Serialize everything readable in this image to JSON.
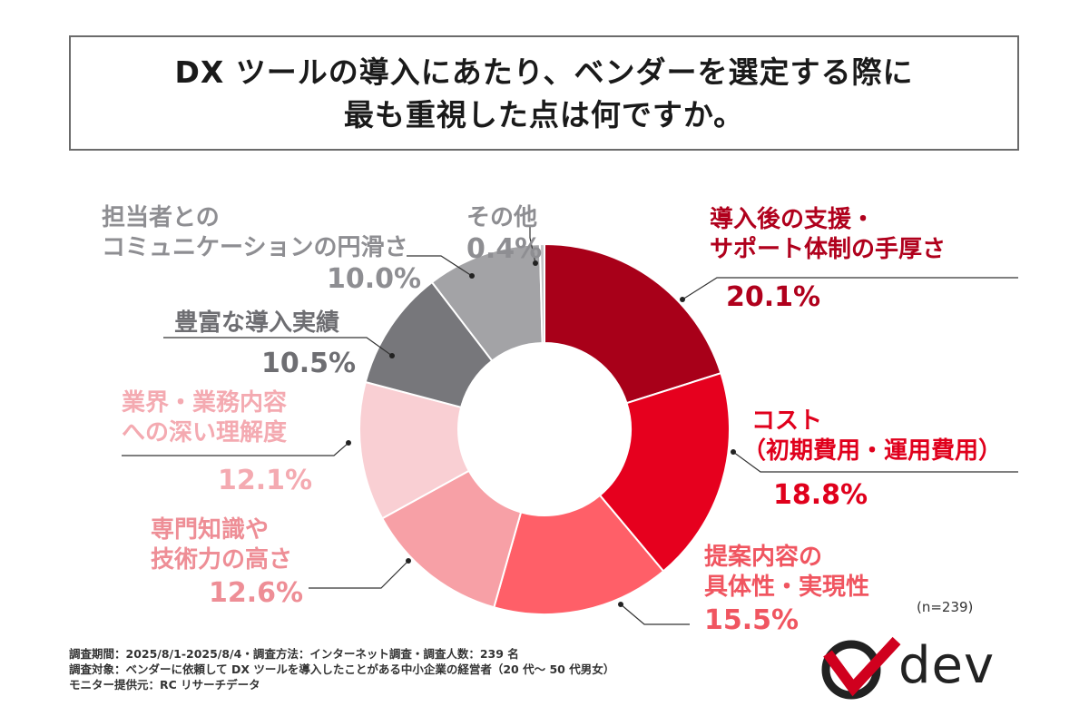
{
  "header": {
    "title_line1": "DX ツールの導入にあたり、ベンダーを選定する際に",
    "title_line2": "最も重視した点は何ですか。"
  },
  "chart_data": {
    "type": "pie",
    "donut": true,
    "title": "DX ツールの導入にあたり、ベンダーを選定する際に最も重視した点は何ですか。",
    "categories": [
      "導入後の支援・サポート体制の手厚さ",
      "コスト（初期費用・運用費用）",
      "提案内容の具体性・実現性",
      "専門知識や技術力の高さ",
      "業界・業務内容への深い理解度",
      "豊富な導入実績",
      "担当者とのコミュニケーションの円滑さ",
      "その他"
    ],
    "values": [
      20.1,
      18.8,
      15.5,
      12.6,
      12.1,
      10.5,
      10.0,
      0.4
    ],
    "colors": [
      "#a80019",
      "#e6001e",
      "#ff5f68",
      "#f7a0a6",
      "#f9cfd3",
      "#77777b",
      "#a3a3a6",
      "#c3c3c6"
    ],
    "labels": [
      {
        "lines": [
          "導入後の支援・",
          "サポート体制の手厚さ"
        ],
        "pct": "20.1%",
        "color": "#b0001c"
      },
      {
        "lines": [
          "コスト",
          "（初期費用・運用費用）"
        ],
        "pct": "18.8%",
        "color": "#e0001c"
      },
      {
        "lines": [
          "提案内容の",
          "具体性・実現性"
        ],
        "pct": "15.5%",
        "color": "#f05560"
      },
      {
        "lines": [
          "専門知識や",
          "技術力の高さ"
        ],
        "pct": "12.6%",
        "color": "#ee8e96"
      },
      {
        "lines": [
          "業界・業務内容",
          "への深い理解度"
        ],
        "pct": "12.1%",
        "color": "#f4aab1"
      },
      {
        "lines": [
          "豊富な導入実績"
        ],
        "pct": "10.5%",
        "color": "#6e6e72"
      },
      {
        "lines": [
          "担当者との",
          "コミュニケーションの円滑さ"
        ],
        "pct": "10.0%",
        "color": "#8e8e92"
      },
      {
        "lines": [
          "その他"
        ],
        "pct": "0.4%",
        "color": "#8e8e92"
      }
    ]
  },
  "sample_size": "(n=239)",
  "footer": {
    "line1": "調査期間：2025/8/1-2025/8/4・調査方法：インターネット調査・調査人数：239 名",
    "line2": "調査対象：ベンダーに依頼して DX ツールを導入したことがある中小企業の経営者（20 代〜 50 代男女）",
    "line3": "モニター提供元：RC リサーチデータ"
  },
  "logo": {
    "text": "dev"
  }
}
